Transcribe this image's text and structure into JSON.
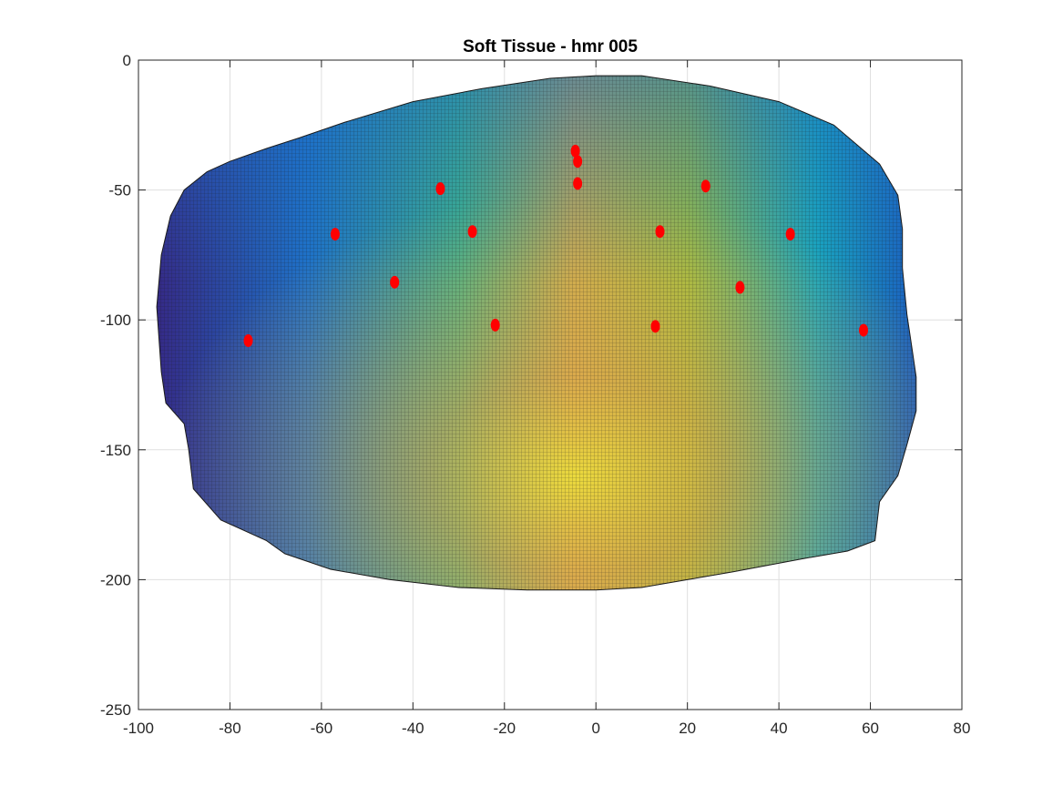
{
  "chart_data": {
    "type": "scatter",
    "title": "Soft Tissue -  hmr 005",
    "xlabel": "",
    "ylabel": "",
    "xlim": [
      -100,
      80
    ],
    "ylim": [
      -250,
      0
    ],
    "xticks": [
      -100,
      -80,
      -60,
      -40,
      -20,
      0,
      20,
      40,
      60,
      80
    ],
    "yticks": [
      0,
      -50,
      -100,
      -150,
      -200,
      -250
    ],
    "grid": true,
    "colormap": "parula",
    "colors": {
      "surface_edge": "#1a1a1a",
      "marker": "#ff0000",
      "parula_low": "#352a87",
      "parula_mid": "#0fadc8",
      "parula_green": "#86bf47",
      "parula_orange": "#e2a24a",
      "parula_high": "#f9fb0e"
    },
    "surface_outline": [
      [
        -94,
        -132
      ],
      [
        -95,
        -120
      ],
      [
        -96,
        -95
      ],
      [
        -95,
        -75
      ],
      [
        -93,
        -60
      ],
      [
        -90,
        -50
      ],
      [
        -85,
        -43
      ],
      [
        -80,
        -39
      ],
      [
        -72,
        -34
      ],
      [
        -65,
        -30
      ],
      [
        -55,
        -24
      ],
      [
        -40,
        -16
      ],
      [
        -25,
        -11
      ],
      [
        -10,
        -7
      ],
      [
        0,
        -6
      ],
      [
        10,
        -6
      ],
      [
        25,
        -10
      ],
      [
        40,
        -16
      ],
      [
        52,
        -25
      ],
      [
        62,
        -40
      ],
      [
        66,
        -52
      ],
      [
        67,
        -65
      ],
      [
        67,
        -80
      ],
      [
        68,
        -98
      ],
      [
        69,
        -110
      ],
      [
        70,
        -122
      ],
      [
        70,
        -135
      ],
      [
        68,
        -148
      ],
      [
        66,
        -160
      ],
      [
        62,
        -170
      ],
      [
        61,
        -185
      ],
      [
        55,
        -189
      ],
      [
        45,
        -192
      ],
      [
        30,
        -197
      ],
      [
        20,
        -200
      ],
      [
        10,
        -203
      ],
      [
        0,
        -204
      ],
      [
        -15,
        -204
      ],
      [
        -30,
        -203
      ],
      [
        -45,
        -200
      ],
      [
        -58,
        -196
      ],
      [
        -68,
        -190
      ],
      [
        -72,
        -185
      ],
      [
        -82,
        -177
      ],
      [
        -88,
        -165
      ],
      [
        -89,
        -150
      ],
      [
        -90,
        -140
      ],
      [
        -94,
        -132
      ]
    ],
    "markers": {
      "name": "",
      "x": [
        -4.5,
        -4,
        -4,
        -34,
        -27,
        -57,
        -44,
        -22,
        14,
        24,
        42.5,
        31.5,
        13,
        58.5,
        -76
      ],
      "y": [
        -35,
        -39,
        -47.5,
        -49.5,
        -66,
        -67,
        -85.5,
        -102,
        -66,
        -48.5,
        -67,
        -87.5,
        -102.5,
        -104,
        -108
      ]
    }
  }
}
